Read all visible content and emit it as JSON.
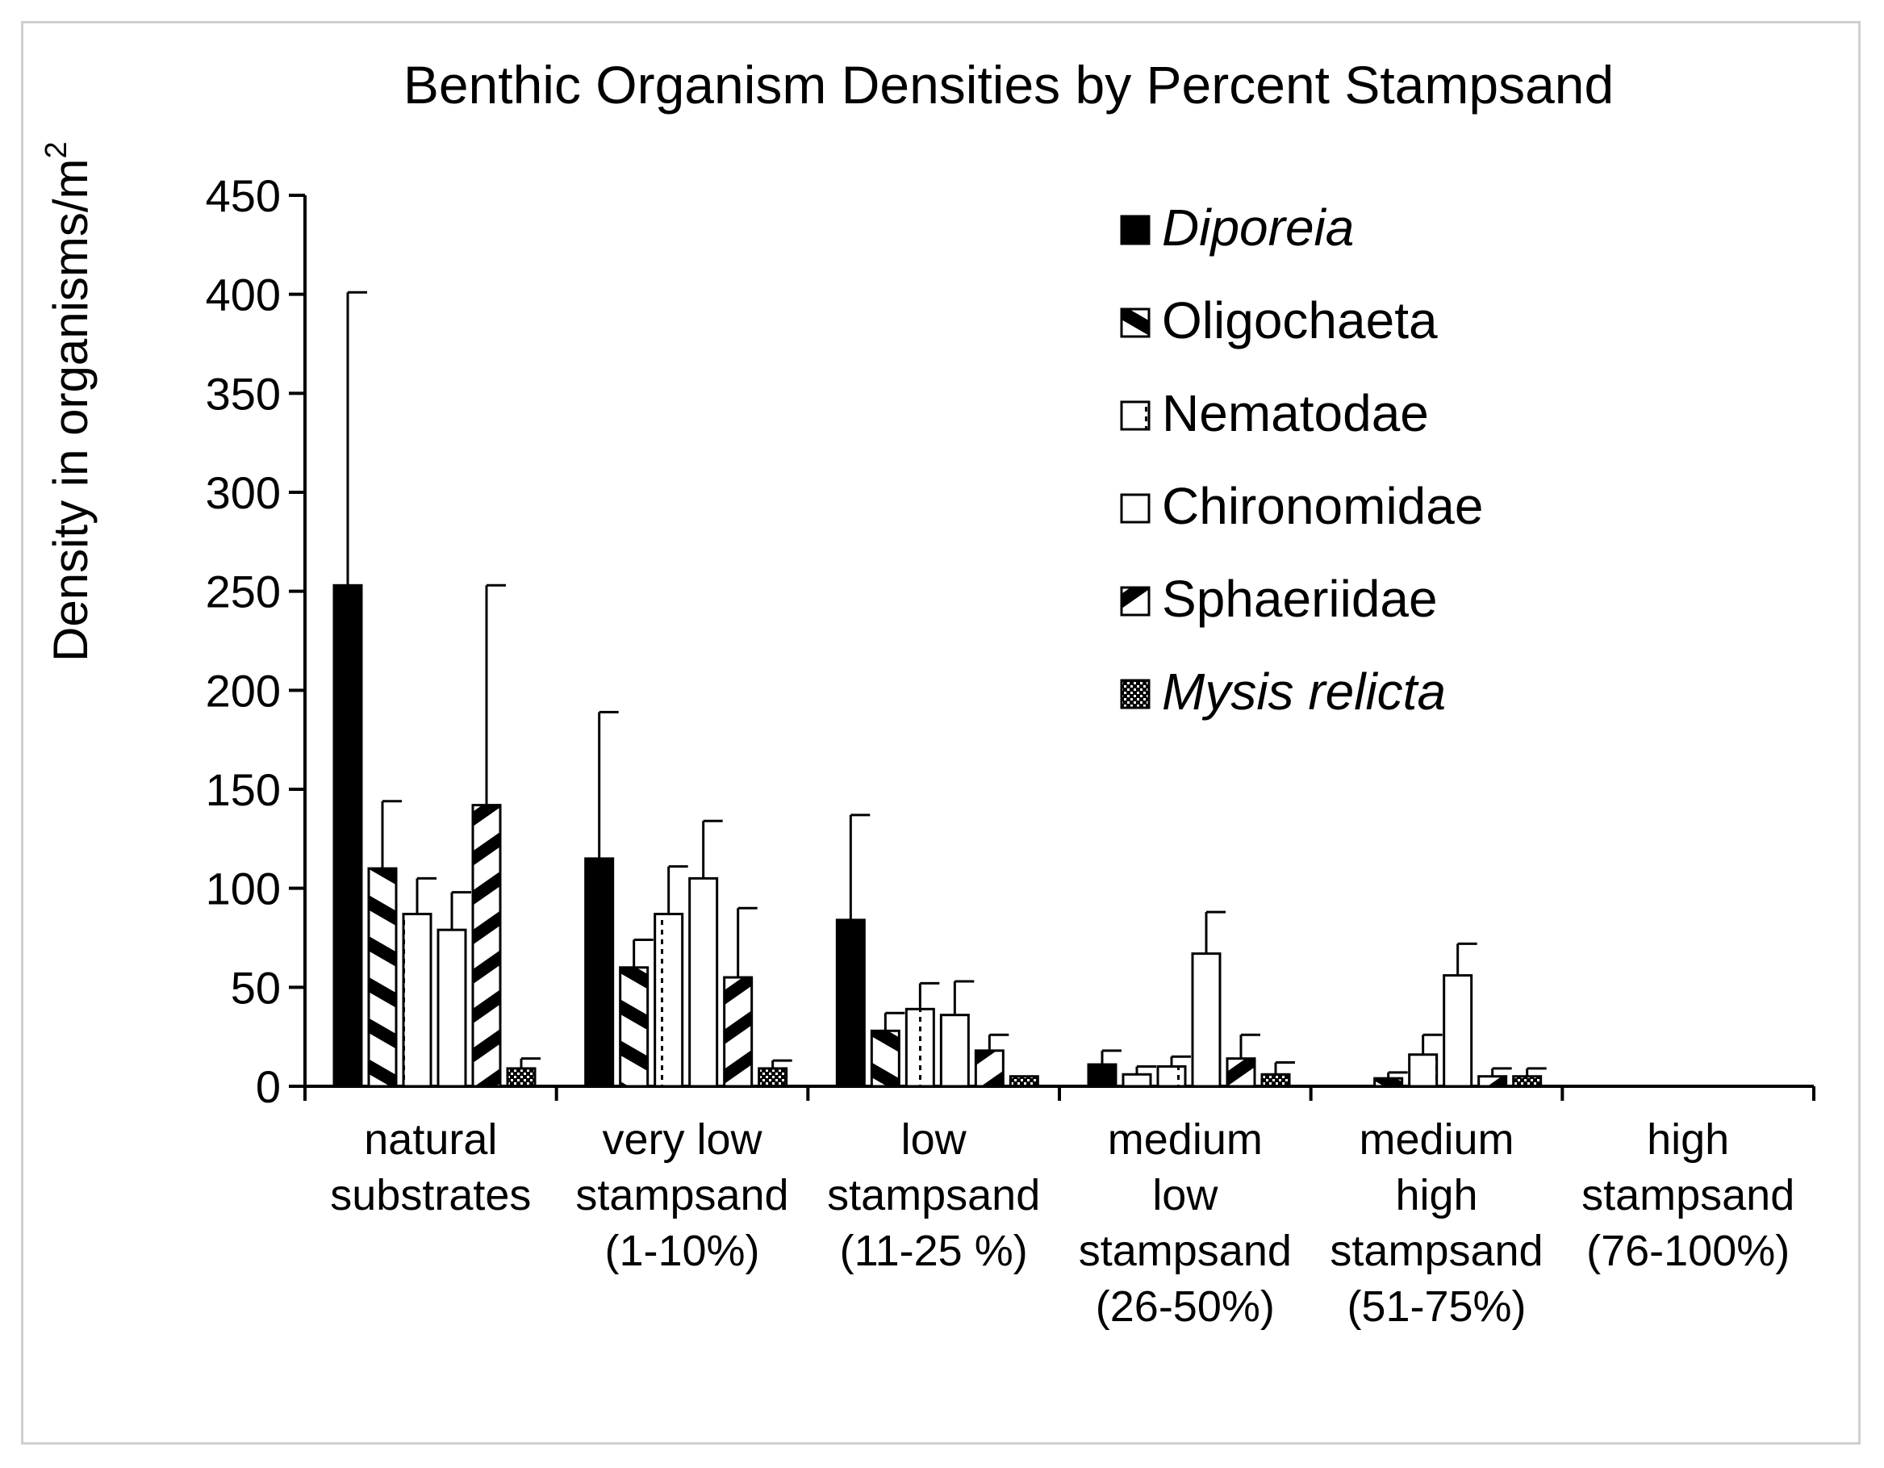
{
  "chart_data": {
    "type": "bar",
    "title": "Benthic Organism Densities by Percent Stampsand",
    "ylabel": "Density in organisms/m",
    "ylabel_superscript": "2",
    "xlabel": "",
    "ylim": [
      0,
      450
    ],
    "yticks": [
      "0",
      "50",
      "100",
      "150",
      "200",
      "250",
      "300",
      "350",
      "400",
      "450"
    ],
    "grid": false,
    "legend_position": "top-right",
    "categories": [
      [
        "natural",
        "substrates"
      ],
      [
        "very low",
        "stampsand",
        "(1-10%)"
      ],
      [
        "low",
        "stampsand",
        "(11-25 %)"
      ],
      [
        "medium",
        "low",
        "stampsand",
        "(26-50%)"
      ],
      [
        "medium",
        "high",
        "stampsand",
        "(51-75%)"
      ],
      [
        "high",
        "stampsand",
        "(76-100%)"
      ]
    ],
    "series": [
      {
        "name": "Diporeia",
        "italic": true,
        "pattern": "solid",
        "values": [
          253,
          115,
          84,
          11,
          0,
          0
        ],
        "errors": [
          148,
          74,
          53,
          7,
          0,
          0
        ]
      },
      {
        "name": "Oligochaeta",
        "italic": false,
        "pattern": "diagonal-wide",
        "values": [
          110,
          60,
          28,
          6,
          4,
          0
        ],
        "errors": [
          34,
          14,
          9,
          4,
          3,
          0
        ]
      },
      {
        "name": "Nematodae",
        "italic": false,
        "pattern": "dotted-vertical",
        "values": [
          87,
          87,
          39,
          10,
          16,
          0
        ],
        "errors": [
          18,
          24,
          13,
          5,
          10,
          0
        ]
      },
      {
        "name": "Chironomidae",
        "italic": false,
        "pattern": "open",
        "values": [
          79,
          105,
          36,
          67,
          56,
          0
        ],
        "errors": [
          19,
          29,
          17,
          21,
          16,
          0
        ]
      },
      {
        "name": "Sphaeriidae",
        "italic": false,
        "pattern": "diagonal-back",
        "values": [
          142,
          55,
          18,
          14,
          5,
          0
        ],
        "errors": [
          111,
          35,
          8,
          12,
          4,
          0
        ]
      },
      {
        "name": "Mysis relicta",
        "italic": true,
        "pattern": "checker",
        "values": [
          9,
          9,
          5,
          6,
          5,
          0
        ],
        "errors": [
          5,
          4,
          0,
          6,
          4,
          0
        ]
      }
    ]
  }
}
